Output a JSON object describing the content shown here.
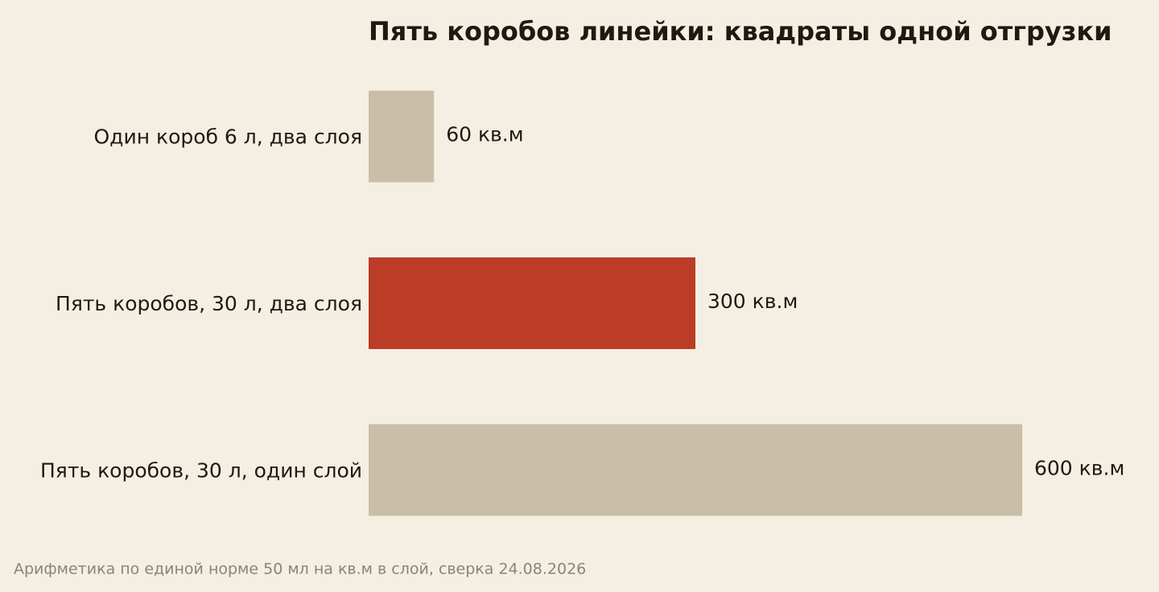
{
  "chart_data": {
    "type": "barh",
    "title": "Пять коробов линейки: квадраты одной отгрузки",
    "categories": [
      "Один короб 6 л, два слоя",
      "Пять коробов, 30 л, два слоя",
      "Пять коробов, 30 л, один слой"
    ],
    "values": [
      60,
      300,
      600
    ],
    "value_labels": [
      "60 кв.м",
      "300 кв.м",
      "600 кв.м"
    ],
    "colors": [
      "#c9bfa8",
      "#bb3d27",
      "#c9bfa8"
    ],
    "footnote": "Арифметика по единой норме 50 мл на кв.м в слой, сверка 24.08.2026"
  }
}
